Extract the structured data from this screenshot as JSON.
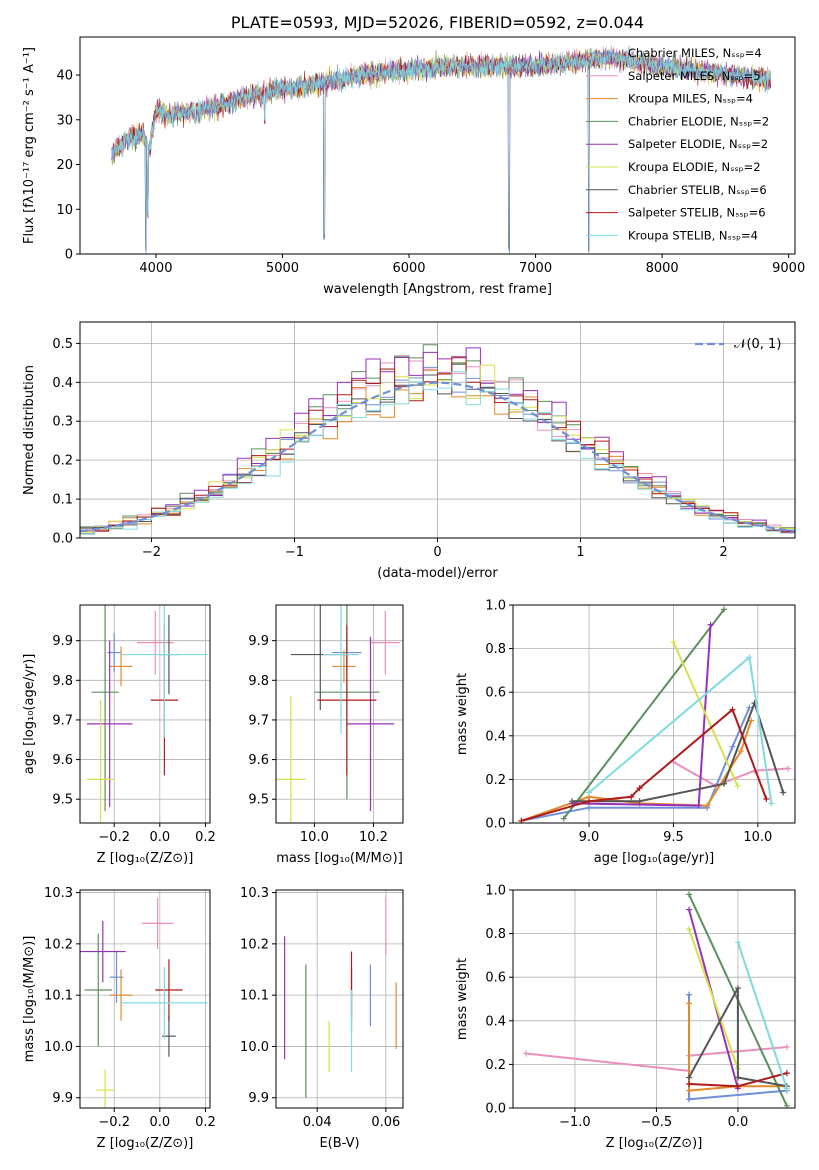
{
  "palette": [
    "#6f8fd8",
    "#e98fc0",
    "#e38a2a",
    "#5c8f5c",
    "#9b30b8",
    "#d6e04a",
    "#555555",
    "#b01a1a",
    "#7fdbe0"
  ],
  "chart_data": [
    {
      "id": "spectrum",
      "type": "line",
      "title": "PLATE=0593, MJD=52026, FIBERID=0592, z=0.044",
      "xlabel": "wavelength [Angstrom, rest frame]",
      "ylabel": "Flux [fλ10⁻¹⁷ erg cm⁻² s⁻¹ A⁻¹]",
      "xlim": [
        3400,
        9050
      ],
      "ylim": [
        0,
        48.5
      ],
      "xticks": [
        "4000",
        "5000",
        "6000",
        "7000",
        "8000",
        "9000"
      ],
      "yticks": [
        "0",
        "10",
        "20",
        "30",
        "40"
      ],
      "grid": false,
      "legend": "right",
      "legend_labels": [
        "Chabrier MILES, Nₛₛₚ=4",
        "Salpeter MILES, Nₛₛₚ=5",
        "Kroupa MILES, Nₛₛₚ=4",
        "Chabrier ELODIE, Nₛₛₚ=2",
        "Salpeter ELODIE, Nₛₛₚ=2",
        "Kroupa ELODIE, Nₛₛₚ=2",
        "Chabrier STELIB, Nₛₛₚ=6",
        "Salpeter STELIB, Nₛₛₚ=6",
        "Kroupa STELIB, Nₛₛₚ=4"
      ],
      "continuum_x": [
        3650,
        3700,
        3800,
        3900,
        3950,
        4000,
        4100,
        4300,
        4500,
        4700,
        5000,
        5300,
        5600,
        6000,
        6300,
        6600,
        7000,
        7300,
        7600,
        8000,
        8300,
        8600,
        8850
      ],
      "continuum_y": [
        22,
        24,
        26,
        27,
        23,
        32,
        31,
        32,
        33,
        35,
        37,
        38,
        40,
        41,
        42,
        42,
        42,
        43,
        44,
        42,
        41,
        40,
        39
      ],
      "dips": [
        [
          3920,
          0
        ],
        [
          3935,
          8
        ],
        [
          5330,
          3
        ],
        [
          6790,
          0
        ],
        [
          7420,
          0
        ],
        [
          4310,
          29
        ],
        [
          4860,
          29
        ]
      ]
    },
    {
      "id": "residuals",
      "type": "bar",
      "xlabel": "(data-model)/error",
      "ylabel": "Normed distribution",
      "xlim": [
        -2.5,
        2.5
      ],
      "ylim": [
        0,
        0.555
      ],
      "xticks": [
        "−2",
        "−1",
        "0",
        "1",
        "2"
      ],
      "yticks": [
        "0.0",
        "0.1",
        "0.2",
        "0.3",
        "0.4",
        "0.5"
      ],
      "grid": true,
      "legend": "top-right",
      "legend_label": "𝒩(0, 1)",
      "bin_width": 0.1,
      "series_peak_center": [
        0.4,
        0.42,
        0.39,
        0.43,
        0.45,
        0.41,
        0.4,
        0.42,
        0.38
      ]
    },
    {
      "id": "age_vs_Z",
      "type": "scatter",
      "xlabel": "Z [log₁₀(Z/Z⊙)]",
      "ylabel": "age  [log₁₀(age/yr)]",
      "xlim": [
        -0.35,
        0.22
      ],
      "ylim": [
        9.44,
        9.99
      ],
      "xticks": [
        "−0.2",
        "0.0",
        "0.2"
      ],
      "yticks": [
        "9.5",
        "9.6",
        "9.7",
        "9.8",
        "9.9"
      ],
      "grid": true,
      "points": [
        {
          "x": -0.2,
          "y": 9.87,
          "ex": 0.03,
          "ey": 0.05
        },
        {
          "x": -0.02,
          "y": 9.895,
          "ex": 0.08,
          "ey": 0.08
        },
        {
          "x": -0.17,
          "y": 9.835,
          "ex": 0.05,
          "ey": 0.05
        },
        {
          "x": -0.24,
          "y": 9.77,
          "ex": 0.06,
          "ey": 0.3
        },
        {
          "x": -0.22,
          "y": 9.69,
          "ex": 0.1,
          "ey": 0.21
        },
        {
          "x": -0.26,
          "y": 9.55,
          "ex": 0.06,
          "ey": 0.2
        },
        {
          "x": 0.04,
          "y": 9.865,
          "ex": 0.04,
          "ey": 0.1
        },
        {
          "x": 0.02,
          "y": 9.75,
          "ex": 0.06,
          "ey": 0.19
        },
        {
          "x": 0.02,
          "y": 9.865,
          "ex": 0.19,
          "ey": 0.21
        }
      ]
    },
    {
      "id": "age_vs_mass",
      "type": "scatter",
      "xlabel": "mass [log₁₀(M/M⊙)]",
      "ylabel": "",
      "xlim": [
        9.87,
        10.3
      ],
      "ylim": [
        9.44,
        9.99
      ],
      "xticks": [
        "10.0",
        "10.2"
      ],
      "yticks": [
        "9.5",
        "9.6",
        "9.7",
        "9.8",
        "9.9"
      ],
      "grid": true,
      "points": [
        {
          "x": 10.11,
          "y": 9.87,
          "ex": 0.05,
          "ey": 0.05
        },
        {
          "x": 10.24,
          "y": 9.895,
          "ex": 0.05,
          "ey": 0.08
        },
        {
          "x": 10.1,
          "y": 9.835,
          "ex": 0.04,
          "ey": 0.04
        },
        {
          "x": 10.11,
          "y": 9.77,
          "ex": 0.11,
          "ey": 0.27
        },
        {
          "x": 10.19,
          "y": 9.69,
          "ex": 0.08,
          "ey": 0.22
        },
        {
          "x": 9.92,
          "y": 9.55,
          "ex": 0.05,
          "ey": 0.21
        },
        {
          "x": 10.02,
          "y": 9.865,
          "ex": 0.1,
          "ey": 0.14
        },
        {
          "x": 10.11,
          "y": 9.75,
          "ex": 0.1,
          "ey": 0.19
        },
        {
          "x": 10.09,
          "y": 9.865,
          "ex": 0.06,
          "ey": 0.2
        }
      ]
    },
    {
      "id": "weight_vs_age",
      "type": "line",
      "xlabel": "age  [log₁₀(age/yr)]",
      "ylabel": "mass weight",
      "xlim": [
        8.55,
        10.22
      ],
      "ylim": [
        0,
        1.0
      ],
      "xticks": [
        "9.0",
        "9.5",
        "10.0"
      ],
      "yticks": [
        "0.0",
        "0.2",
        "0.4",
        "0.6",
        "0.8",
        "1.0"
      ],
      "grid": true,
      "series": [
        {
          "x": [
            8.6,
            9.0,
            9.7,
            9.85,
            9.95
          ],
          "y": [
            0.01,
            0.07,
            0.07,
            0.35,
            0.53
          ]
        },
        {
          "x": [
            9.5,
            9.75,
            9.98,
            10.18
          ],
          "y": [
            0.28,
            0.17,
            0.24,
            0.25
          ]
        },
        {
          "x": [
            8.6,
            9.0,
            9.3,
            9.7,
            9.9,
            9.96
          ],
          "y": [
            0.01,
            0.12,
            0.09,
            0.08,
            0.33,
            0.47
          ]
        },
        {
          "x": [
            8.85,
            9.8
          ],
          "y": [
            0.02,
            0.98
          ]
        },
        {
          "x": [
            8.9,
            9.65,
            9.72
          ],
          "y": [
            0.09,
            0.08,
            0.91
          ]
        },
        {
          "x": [
            9.5,
            9.88
          ],
          "y": [
            0.83,
            0.17
          ]
        },
        {
          "x": [
            8.9,
            9.3,
            9.8,
            9.98,
            10.15
          ],
          "y": [
            0.1,
            0.1,
            0.18,
            0.55,
            0.14
          ]
        },
        {
          "x": [
            8.6,
            9.0,
            9.25,
            9.3,
            9.85,
            10.05
          ],
          "y": [
            0.01,
            0.1,
            0.12,
            0.16,
            0.52,
            0.11
          ]
        },
        {
          "x": [
            9.0,
            9.95,
            10.08
          ],
          "y": [
            0.14,
            0.76,
            0.09
          ]
        }
      ]
    },
    {
      "id": "mass_vs_Z",
      "type": "scatter",
      "xlabel": "Z [log₁₀(Z/Z⊙)]",
      "ylabel": "mass [log₁₀(M/M⊙)]",
      "xlim": [
        -0.35,
        0.22
      ],
      "ylim": [
        9.88,
        10.305
      ],
      "xticks": [
        "−0.2",
        "0.0",
        "0.2"
      ],
      "yticks": [
        "9.9",
        "10.0",
        "10.1",
        "10.2",
        "10.3"
      ],
      "grid": true,
      "points": [
        {
          "x": -0.19,
          "y": 10.135,
          "ex": 0.03,
          "ey": 0.05
        },
        {
          "x": -0.01,
          "y": 10.24,
          "ex": 0.07,
          "ey": 0.05
        },
        {
          "x": -0.17,
          "y": 10.1,
          "ex": 0.05,
          "ey": 0.05
        },
        {
          "x": -0.27,
          "y": 10.11,
          "ex": 0.06,
          "ey": 0.11
        },
        {
          "x": -0.25,
          "y": 10.185,
          "ex": 0.1,
          "ey": 0.06
        },
        {
          "x": -0.24,
          "y": 9.915,
          "ex": 0.04,
          "ey": 0.04
        },
        {
          "x": 0.04,
          "y": 10.02,
          "ex": 0.03,
          "ey": 0.04
        },
        {
          "x": 0.04,
          "y": 10.11,
          "ex": 0.06,
          "ey": 0.06
        },
        {
          "x": 0.02,
          "y": 10.085,
          "ex": 0.19,
          "ey": 0.07
        }
      ]
    },
    {
      "id": "mass_vs_EBV",
      "type": "scatter",
      "xlabel": "E(B-V)",
      "ylabel": "",
      "xlim": [
        0.028,
        0.065
      ],
      "ylim": [
        9.88,
        10.305
      ],
      "xticks": [
        "0.04",
        "0.06"
      ],
      "yticks": [
        "9.9",
        "10.0",
        "10.1",
        "10.2",
        "10.3"
      ],
      "grid": true,
      "points": [
        {
          "x": 0.0555,
          "y": 10.1,
          "ey": 0.06
        },
        {
          "x": 0.06,
          "y": 10.235,
          "ey": 0.055
        },
        {
          "x": 0.063,
          "y": 10.06,
          "ey": 0.065
        },
        {
          "x": 0.0367,
          "y": 10.03,
          "ey": 0.13
        },
        {
          "x": 0.0305,
          "y": 10.095,
          "ey": 0.12
        },
        {
          "x": 0.0435,
          "y": 10.0,
          "ey": 0.05
        },
        {
          "x": 0.05,
          "y": 10.09,
          "ey": 0.06
        },
        {
          "x": 0.05,
          "y": 10.12,
          "ey": 0.065
        },
        {
          "x": 0.05,
          "y": 10.03,
          "ey": 0.08
        }
      ]
    },
    {
      "id": "weight_vs_Z",
      "type": "line",
      "xlabel": "Z [log₁₀(Z/Z⊙)]",
      "ylabel": "mass weight",
      "xlim": [
        -1.38,
        0.35
      ],
      "ylim": [
        0,
        1.0
      ],
      "xticks": [
        "−1.0",
        "−0.5",
        "0.0"
      ],
      "yticks": [
        "0.0",
        "0.2",
        "0.4",
        "0.6",
        "0.8",
        "1.0"
      ],
      "grid": true,
      "series": [
        {
          "x": [
            -0.3,
            -0.3,
            0.3
          ],
          "y": [
            0.52,
            0.04,
            0.08
          ]
        },
        {
          "x": [
            -1.3,
            -0.3,
            -0.3,
            0.3
          ],
          "y": [
            0.25,
            0.17,
            0.24,
            0.28
          ]
        },
        {
          "x": [
            -0.3,
            -0.3,
            0.0,
            0.3
          ],
          "y": [
            0.48,
            0.08,
            0.1,
            0.1
          ]
        },
        {
          "x": [
            -0.3,
            0.3
          ],
          "y": [
            0.98,
            0.01
          ]
        },
        {
          "x": [
            -0.3,
            0.0
          ],
          "y": [
            0.91,
            0.09
          ]
        },
        {
          "x": [
            -0.3,
            0.0
          ],
          "y": [
            0.82,
            0.18
          ]
        },
        {
          "x": [
            -0.3,
            0.0,
            0.0,
            0.3
          ],
          "y": [
            0.14,
            0.55,
            0.14,
            0.1
          ]
        },
        {
          "x": [
            -0.3,
            0.0,
            0.3
          ],
          "y": [
            0.11,
            0.1,
            0.16
          ]
        },
        {
          "x": [
            0.0,
            0.3
          ],
          "y": [
            0.76,
            0.09
          ]
        }
      ]
    }
  ]
}
